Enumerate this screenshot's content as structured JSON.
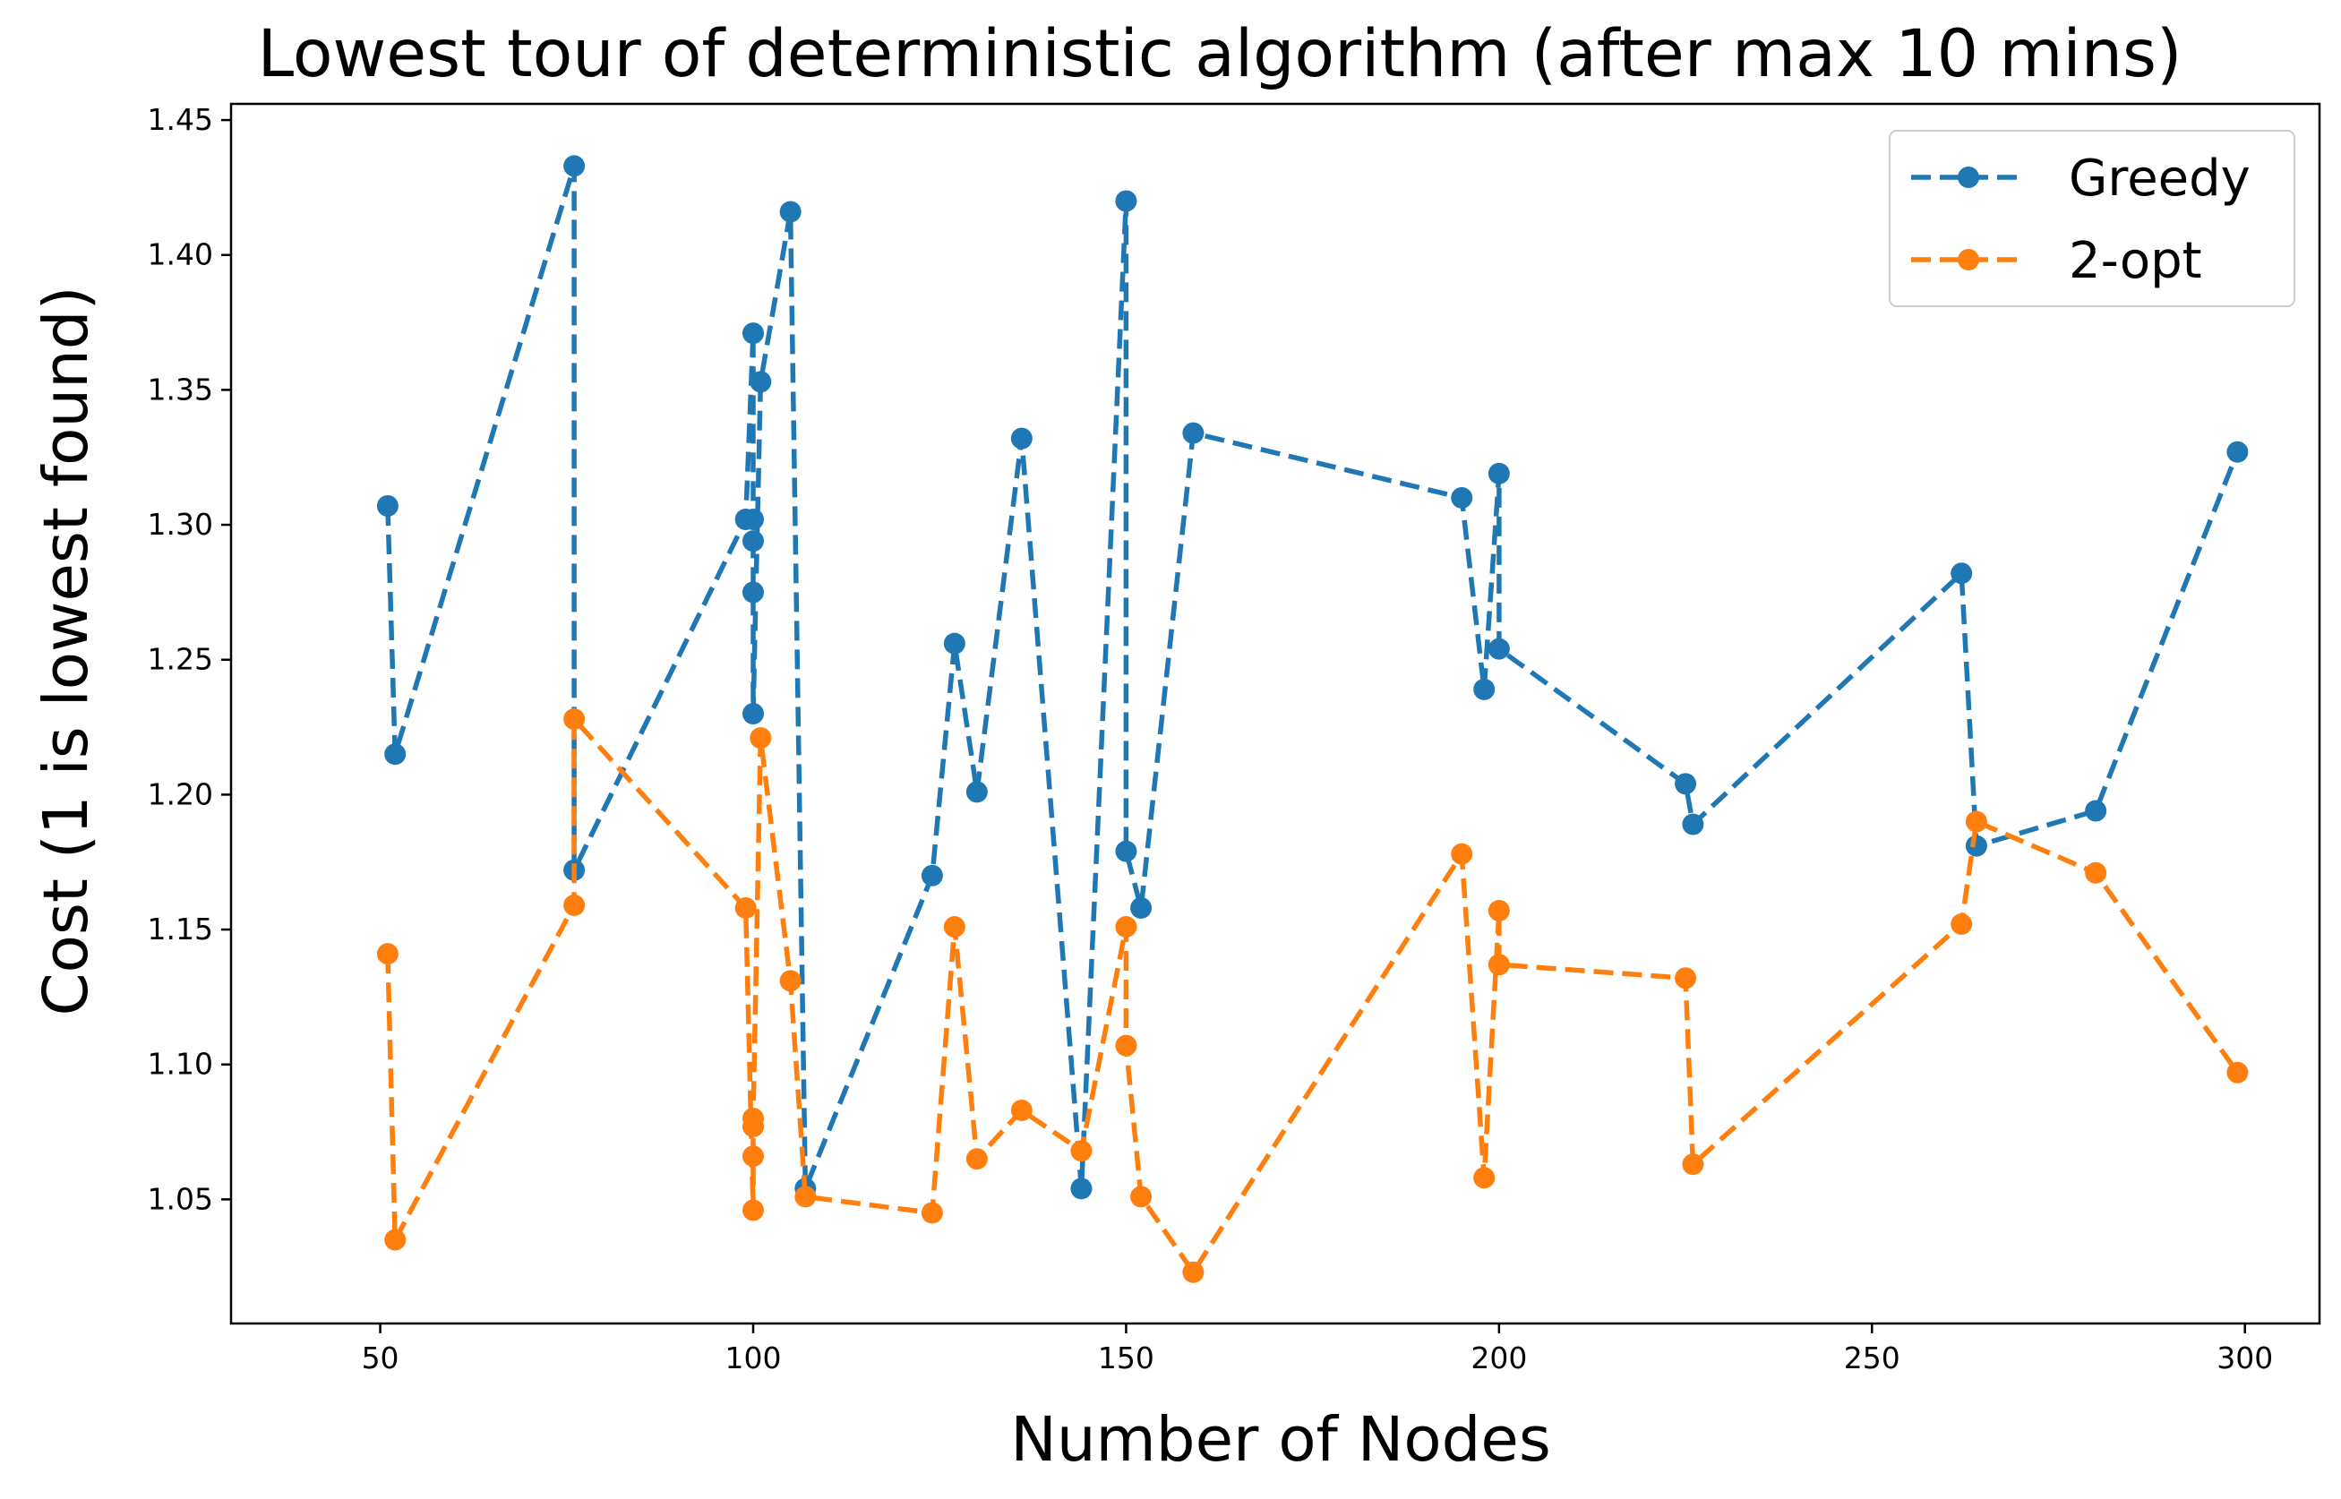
{
  "chart_data": {
    "type": "line",
    "title": "Lowest tour of deterministic algorithm (after max 10 mins)",
    "xlabel": "Number of Nodes",
    "ylabel": "Cost (1 is lowest found)",
    "xlim": [
      30,
      310
    ],
    "ylim": [
      1.004,
      1.456
    ],
    "xticks": [
      50,
      100,
      150,
      200,
      250,
      300
    ],
    "yticks": [
      1.05,
      1.1,
      1.15,
      1.2,
      1.25,
      1.3,
      1.35,
      1.4,
      1.45
    ],
    "ytick_labels": [
      "1.05",
      "1.10",
      "1.15",
      "1.20",
      "1.25",
      "1.30",
      "1.35",
      "1.40",
      "1.45"
    ],
    "legend_position": "top-right",
    "grid": false,
    "series": [
      {
        "name": "Greedy",
        "color": "#1f77b4",
        "line_style": "dashed",
        "marker": "circle",
        "x": [
          51,
          52,
          76,
          76,
          99,
          100,
          100,
          100,
          100,
          100,
          101,
          105,
          107,
          124,
          127,
          130,
          136,
          144,
          150,
          150,
          152,
          159,
          195,
          198,
          200,
          200,
          225,
          226,
          262,
          264,
          280,
          299
        ],
        "y": [
          1.307,
          1.215,
          1.433,
          1.172,
          1.302,
          1.371,
          1.302,
          1.294,
          1.275,
          1.23,
          1.353,
          1.416,
          1.054,
          1.17,
          1.256,
          1.201,
          1.332,
          1.054,
          1.42,
          1.179,
          1.158,
          1.334,
          1.31,
          1.239,
          1.319,
          1.254,
          1.204,
          1.189,
          1.282,
          1.181,
          1.194,
          1.327
        ]
      },
      {
        "name": "2-opt",
        "color": "#ff7f0e",
        "line_style": "dashed",
        "marker": "circle",
        "x": [
          51,
          52,
          76,
          76,
          99,
          100,
          100,
          100,
          100,
          101,
          105,
          107,
          124,
          127,
          130,
          136,
          144,
          150,
          150,
          152,
          159,
          195,
          198,
          200,
          200,
          225,
          226,
          262,
          264,
          280,
          299
        ],
        "y": [
          1.141,
          1.035,
          1.159,
          1.228,
          1.158,
          1.046,
          1.066,
          1.077,
          1.08,
          1.221,
          1.131,
          1.051,
          1.045,
          1.151,
          1.065,
          1.083,
          1.068,
          1.151,
          1.107,
          1.051,
          1.023,
          1.178,
          1.058,
          1.157,
          1.137,
          1.132,
          1.063,
          1.152,
          1.19,
          1.171,
          1.097
        ]
      }
    ]
  }
}
